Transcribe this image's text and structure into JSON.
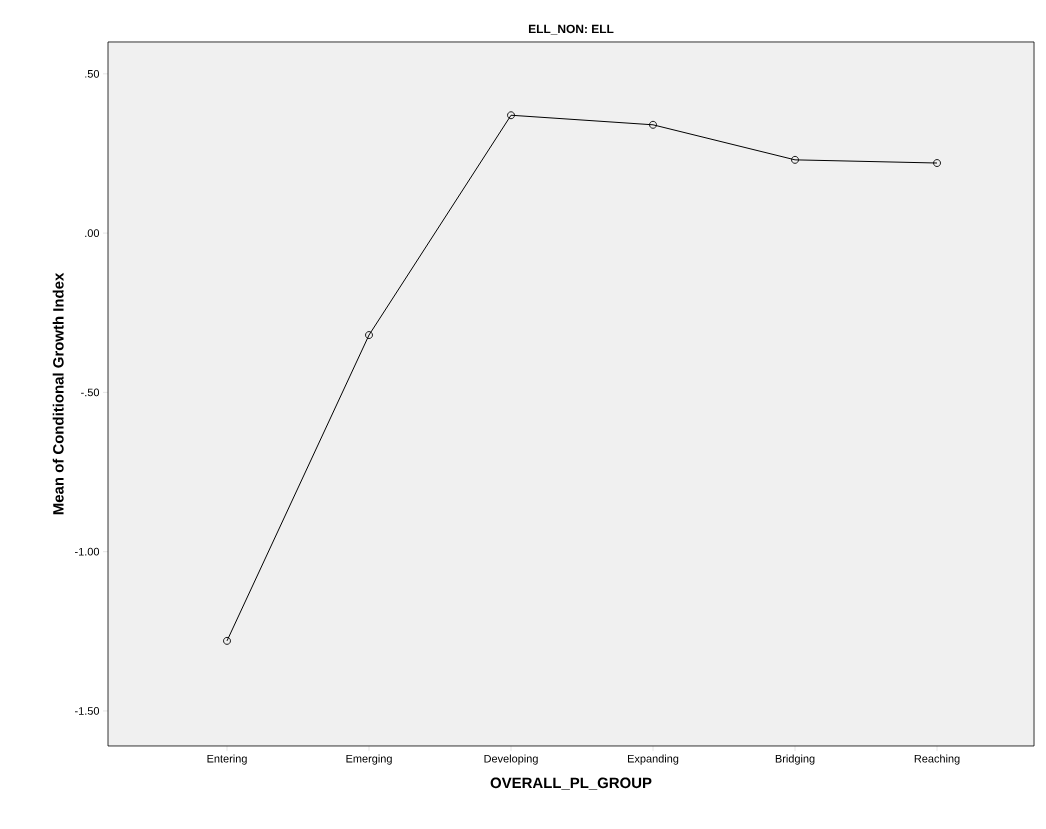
{
  "chart_data": {
    "type": "line",
    "title": "ELL_NON: ELL",
    "xlabel": "OVERALL_PL_GROUP",
    "ylabel": "Mean of Conditional Growth Index",
    "categories": [
      "Entering",
      "Emerging",
      "Developing",
      "Expanding",
      "Bridging",
      "Reaching"
    ],
    "series": [
      {
        "color": "#000000",
        "values": [
          -1.28,
          -0.32,
          0.37,
          0.34,
          0.23,
          0.22
        ]
      }
    ],
    "ylim": [
      -1.61,
      0.6
    ],
    "yticks": [
      {
        "value": -1.5,
        "label": "-1.50"
      },
      {
        "value": -1.0,
        "label": "-1.00"
      },
      {
        "value": -0.5,
        "label": "-.50"
      },
      {
        "value": 0.0,
        "label": ".00"
      },
      {
        "value": 0.5,
        "label": ".50"
      }
    ],
    "marker": "circle",
    "line_style": "solid",
    "grid": false
  }
}
